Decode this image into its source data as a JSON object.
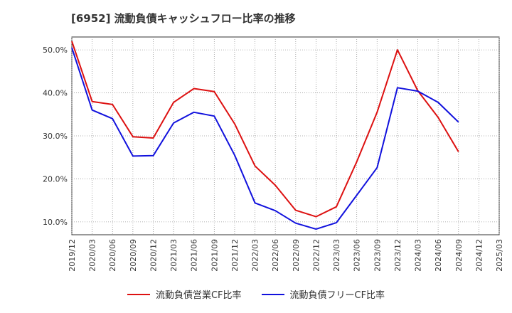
{
  "chart_data": {
    "type": "line",
    "title": "[6952]  流動負債キャッシュフロー比率の推移",
    "xlabel": "",
    "ylabel": "",
    "x_ticks": [
      "2019/12",
      "2020/03",
      "2020/06",
      "2020/09",
      "2020/12",
      "2021/03",
      "2021/06",
      "2021/09",
      "2021/12",
      "2022/03",
      "2022/06",
      "2022/09",
      "2022/12",
      "2023/03",
      "2023/06",
      "2023/09",
      "2023/12",
      "2024/03",
      "2024/06",
      "2024/09",
      "2024/12",
      "2025/03"
    ],
    "y_ticks": [
      10.0,
      20.0,
      30.0,
      40.0,
      50.0
    ],
    "y_tick_labels": [
      "10.0%",
      "20.0%",
      "30.0%",
      "40.0%",
      "50.0%"
    ],
    "ylim": [
      7.0,
      53.0
    ],
    "grid": true,
    "legend_position": "bottom",
    "series": [
      {
        "name": "流動負債営業CF比率",
        "color": "#dd1111",
        "x": [
          "2019/12",
          "2020/03",
          "2020/06",
          "2020/09",
          "2020/12",
          "2021/03",
          "2021/06",
          "2021/09",
          "2021/12",
          "2022/03",
          "2022/06",
          "2022/09",
          "2022/12",
          "2023/03",
          "2023/06",
          "2023/09",
          "2023/12",
          "2024/03",
          "2024/06",
          "2024/09"
        ],
        "values": [
          52.0,
          38.0,
          37.3,
          29.8,
          29.5,
          37.8,
          41.0,
          40.3,
          32.8,
          23.0,
          18.5,
          12.7,
          11.2,
          13.5,
          24.0,
          35.5,
          50.0,
          40.5,
          34.3,
          26.3
        ]
      },
      {
        "name": "流動負債フリーCF比率",
        "color": "#1111dd",
        "x": [
          "2019/12",
          "2020/03",
          "2020/06",
          "2020/09",
          "2020/12",
          "2021/03",
          "2021/06",
          "2021/09",
          "2021/12",
          "2022/03",
          "2022/06",
          "2022/09",
          "2022/12",
          "2023/03",
          "2023/06",
          "2023/09",
          "2023/12",
          "2024/03",
          "2024/06",
          "2024/09"
        ],
        "values": [
          50.5,
          36.0,
          34.0,
          25.3,
          25.4,
          33.0,
          35.5,
          34.6,
          25.5,
          14.4,
          12.6,
          9.7,
          8.3,
          9.8,
          16.2,
          22.6,
          41.2,
          40.4,
          37.8,
          33.2
        ]
      }
    ]
  }
}
